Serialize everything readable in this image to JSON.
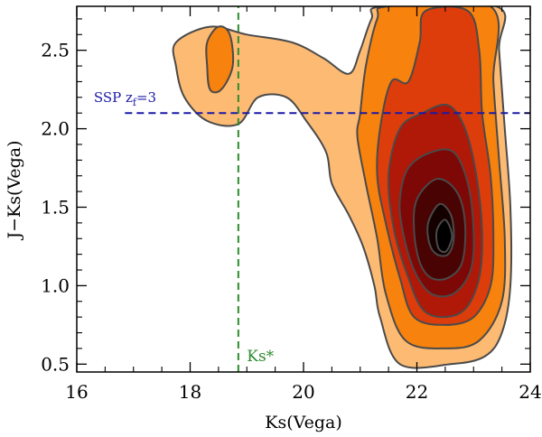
{
  "chart_data": {
    "type": "contour",
    "title": "",
    "xlabel": "Ks(Vega)",
    "ylabel": "J−Ks(Vega)",
    "xlim": [
      16,
      24
    ],
    "ylim": [
      0.45,
      2.78
    ],
    "xticks": [
      16,
      18,
      20,
      22,
      24
    ],
    "yticks": [
      0.5,
      1.0,
      1.5,
      2.0,
      2.5
    ],
    "xtick_labels": [
      "16",
      "18",
      "20",
      "22",
      "24"
    ],
    "ytick_labels": [
      "0.5",
      "1.0",
      "1.5",
      "2.0",
      "2.5"
    ],
    "level_colors": [
      "#fdba73",
      "#f7820e",
      "#dd3d0b",
      "#b01808",
      "#7d0805",
      "#4a0303",
      "#150000",
      "#000000"
    ],
    "contours": [
      {
        "level": 1,
        "points": [
          [
            17.75,
            2.55
          ],
          [
            18.35,
            2.65
          ],
          [
            19.0,
            2.6
          ],
          [
            19.8,
            2.55
          ],
          [
            20.35,
            2.45
          ],
          [
            20.8,
            2.35
          ],
          [
            21.0,
            2.5
          ],
          [
            21.2,
            2.7
          ],
          [
            21.4,
            2.78
          ],
          [
            23.4,
            2.78
          ],
          [
            23.45,
            2.5
          ],
          [
            23.55,
            2.0
          ],
          [
            23.65,
            1.5
          ],
          [
            23.65,
            1.0
          ],
          [
            23.5,
            0.7
          ],
          [
            23.2,
            0.55
          ],
          [
            22.6,
            0.5
          ],
          [
            21.7,
            0.5
          ],
          [
            21.35,
            0.8
          ],
          [
            21.25,
            1.0
          ],
          [
            21.05,
            1.25
          ],
          [
            20.8,
            1.45
          ],
          [
            20.5,
            1.65
          ],
          [
            20.4,
            1.85
          ],
          [
            20.05,
            2.05
          ],
          [
            19.7,
            2.2
          ],
          [
            19.2,
            2.2
          ],
          [
            18.85,
            2.03
          ],
          [
            18.3,
            2.05
          ],
          [
            17.9,
            2.2
          ],
          [
            17.75,
            2.4
          ]
        ]
      },
      {
        "level": 2,
        "points": [
          [
            21.5,
            2.78
          ],
          [
            23.3,
            2.78
          ],
          [
            23.35,
            2.3
          ],
          [
            23.45,
            1.8
          ],
          [
            23.55,
            1.3
          ],
          [
            23.5,
            0.9
          ],
          [
            23.1,
            0.65
          ],
          [
            22.5,
            0.6
          ],
          [
            21.8,
            0.65
          ],
          [
            21.45,
            0.95
          ],
          [
            21.3,
            1.3
          ],
          [
            21.1,
            1.65
          ],
          [
            20.95,
            1.95
          ],
          [
            21.0,
            2.1
          ],
          [
            21.1,
            2.4
          ],
          [
            21.3,
            2.7
          ]
        ]
      },
      {
        "level": 2,
        "points": [
          [
            18.35,
            2.25
          ],
          [
            18.55,
            2.25
          ],
          [
            18.75,
            2.4
          ],
          [
            18.7,
            2.6
          ],
          [
            18.5,
            2.65
          ],
          [
            18.3,
            2.55
          ],
          [
            18.3,
            2.4
          ]
        ]
      },
      {
        "level": 3,
        "points": [
          [
            21.55,
            2.3
          ],
          [
            21.85,
            2.3
          ],
          [
            22.05,
            2.55
          ],
          [
            22.15,
            2.75
          ],
          [
            22.9,
            2.75
          ],
          [
            23.1,
            2.5
          ],
          [
            23.15,
            2.1
          ],
          [
            23.3,
            1.7
          ],
          [
            23.35,
            1.3
          ],
          [
            23.3,
            1.0
          ],
          [
            23.0,
            0.8
          ],
          [
            22.5,
            0.75
          ],
          [
            21.95,
            0.8
          ],
          [
            21.7,
            1.05
          ],
          [
            21.45,
            1.4
          ],
          [
            21.3,
            1.7
          ],
          [
            21.35,
            2.0
          ]
        ]
      },
      {
        "level": 4,
        "points": [
          [
            21.7,
            2.0
          ],
          [
            22.1,
            2.1
          ],
          [
            22.55,
            2.15
          ],
          [
            22.85,
            2.0
          ],
          [
            23.05,
            1.7
          ],
          [
            23.15,
            1.35
          ],
          [
            23.1,
            1.05
          ],
          [
            22.85,
            0.85
          ],
          [
            22.45,
            0.8
          ],
          [
            22.1,
            0.85
          ],
          [
            21.85,
            1.05
          ],
          [
            21.6,
            1.35
          ],
          [
            21.5,
            1.7
          ]
        ]
      },
      {
        "level": 5,
        "points": [
          [
            21.85,
            1.75
          ],
          [
            22.25,
            1.85
          ],
          [
            22.65,
            1.85
          ],
          [
            22.9,
            1.65
          ],
          [
            23.0,
            1.35
          ],
          [
            22.95,
            1.1
          ],
          [
            22.65,
            0.95
          ],
          [
            22.25,
            0.95
          ],
          [
            21.95,
            1.1
          ],
          [
            21.75,
            1.35
          ],
          [
            21.7,
            1.55
          ]
        ]
      },
      {
        "level": 6,
        "points": [
          [
            22.0,
            1.55
          ],
          [
            22.35,
            1.68
          ],
          [
            22.7,
            1.6
          ],
          [
            22.85,
            1.4
          ],
          [
            22.8,
            1.15
          ],
          [
            22.55,
            1.05
          ],
          [
            22.25,
            1.05
          ],
          [
            22.05,
            1.15
          ],
          [
            21.95,
            1.35
          ]
        ]
      },
      {
        "level": 7,
        "points": [
          [
            22.2,
            1.4
          ],
          [
            22.4,
            1.52
          ],
          [
            22.6,
            1.45
          ],
          [
            22.65,
            1.3
          ],
          [
            22.55,
            1.2
          ],
          [
            22.35,
            1.2
          ],
          [
            22.22,
            1.27
          ]
        ]
      },
      {
        "level": 8,
        "points": [
          [
            22.35,
            1.35
          ],
          [
            22.5,
            1.42
          ],
          [
            22.62,
            1.32
          ],
          [
            22.52,
            1.22
          ],
          [
            22.38,
            1.24
          ]
        ]
      }
    ],
    "lines": [
      {
        "orientation": "horizontal",
        "value": 2.1,
        "style": "dashed",
        "color": "#1a1aa6",
        "from": 16.85,
        "to": 24.0
      },
      {
        "orientation": "vertical",
        "value": 18.85,
        "style": "dashed",
        "color": "#2e8b2e",
        "from": 0.45,
        "to": 2.78
      }
    ],
    "annotations": [
      {
        "id": "ssp",
        "base": "SSP  z",
        "sub": "f",
        "tail": "=3",
        "x": 16.3,
        "y": 2.17
      },
      {
        "id": "ks",
        "text": "Ks*",
        "x": 19.0,
        "y": 0.52
      }
    ]
  }
}
